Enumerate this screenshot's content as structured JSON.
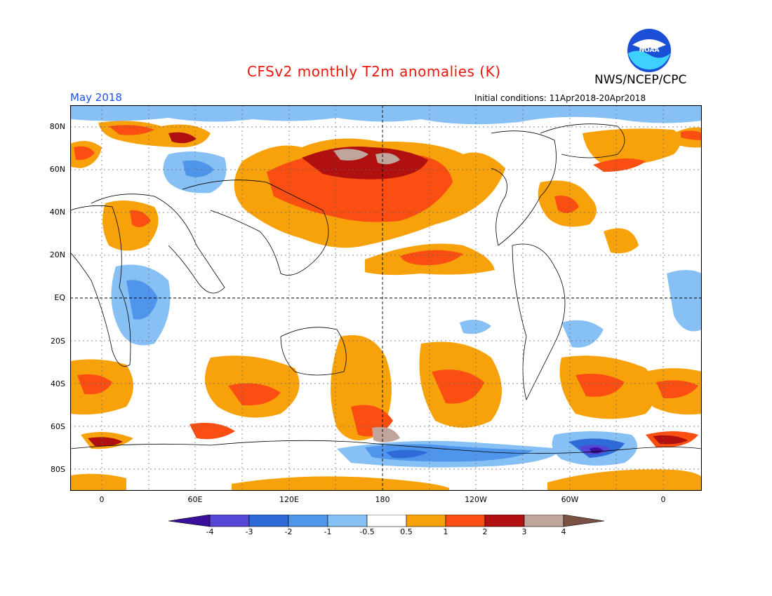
{
  "header": {
    "title": "CFSv2 monthly T2m anomalies (K)",
    "agency": "NWS/NCEP/CPC",
    "month": "May 2018",
    "initial_conditions": "Initial conditions: 11Apr2018-20Apr2018",
    "logo_text": "NOAA"
  },
  "map": {
    "lat_labels": [
      "80N",
      "60N",
      "40N",
      "20N",
      "EQ",
      "20S",
      "40S",
      "60S",
      "80S"
    ],
    "lon_labels": [
      "0",
      "60E",
      "120E",
      "180",
      "120W",
      "60W",
      "0"
    ]
  },
  "colorbar": {
    "labels": [
      "-4",
      "-3",
      "-2",
      "-1",
      "-0.5",
      "0.5",
      "1",
      "2",
      "3",
      "4"
    ],
    "colors": {
      "lt_-4": "#3a0f9c",
      "-4_-3": "#5546d6",
      "-3_-2": "#2e6ad8",
      "-2_-1": "#4f95ec",
      "-1_-0.5": "#87c0f4",
      "-0.5_0.5": "#ffffff",
      "0.5_1": "#f7a20b",
      "1_2": "#fa4e12",
      "2_3": "#b01010",
      "3_4": "#c0a59c",
      "gt_4": "#7a5243"
    }
  }
}
